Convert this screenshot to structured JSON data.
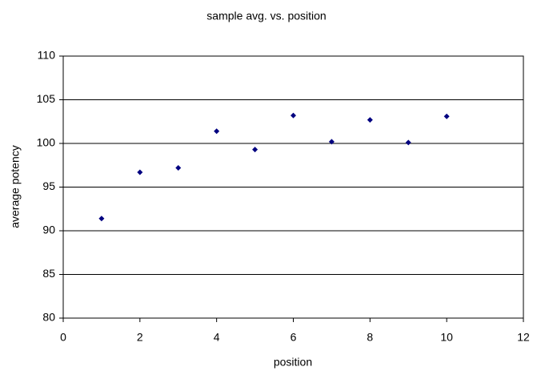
{
  "chart_data": {
    "type": "scatter",
    "title": "sample avg. vs. position",
    "x_label": "position",
    "y_label": "average potency",
    "series": [
      {
        "color": "#000080",
        "x": [
          1,
          2,
          3,
          4,
          5,
          6,
          7,
          8,
          9,
          10
        ],
        "values": [
          91.4,
          96.7,
          97.2,
          101.4,
          99.3,
          103.2,
          100.2,
          102.7,
          100.1,
          103.1
        ]
      }
    ],
    "xlim": [
      0,
      12
    ],
    "xticks": [
      0,
      2,
      4,
      6,
      8,
      10,
      12
    ],
    "ylim": [
      80,
      110
    ],
    "yticks": [
      80,
      85,
      90,
      95,
      100,
      105,
      110
    ],
    "grid": true
  }
}
